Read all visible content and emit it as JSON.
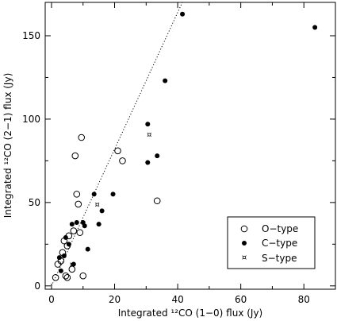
{
  "chart_data": {
    "type": "scatter",
    "xlabel": "Integrated ¹²CO (1−0) flux (Jy)",
    "ylabel": "Integrated ¹²CO (2−1) flux (Jy)",
    "xlim": [
      -2,
      90
    ],
    "ylim": [
      -2,
      170
    ],
    "x_ticks": [
      0,
      20,
      40,
      60,
      80
    ],
    "y_ticks": [
      0,
      50,
      100,
      150
    ],
    "grid": false,
    "legend_position": "bottom-right",
    "series": [
      {
        "name": "O−type",
        "marker": "open-circle",
        "points": [
          [
            1.3,
            5
          ],
          [
            2,
            13
          ],
          [
            3,
            15
          ],
          [
            3.5,
            20
          ],
          [
            4,
            27
          ],
          [
            4.5,
            6
          ],
          [
            5,
            5
          ],
          [
            5,
            24
          ],
          [
            5.5,
            30
          ],
          [
            6.5,
            10
          ],
          [
            7,
            33
          ],
          [
            7.5,
            78
          ],
          [
            8,
            55
          ],
          [
            8.5,
            49
          ],
          [
            9,
            32
          ],
          [
            9.5,
            89
          ],
          [
            10,
            6
          ],
          [
            21,
            81
          ],
          [
            22.5,
            75
          ],
          [
            33.5,
            51
          ]
        ]
      },
      {
        "name": "C−type",
        "marker": "filled-circle",
        "points": [
          [
            2.5,
            17
          ],
          [
            3,
            9
          ],
          [
            4,
            18
          ],
          [
            4.5,
            29
          ],
          [
            5.5,
            25
          ],
          [
            6.5,
            37
          ],
          [
            7,
            13
          ],
          [
            8,
            38
          ],
          [
            10,
            38
          ],
          [
            10.5,
            36
          ],
          [
            11.5,
            22
          ],
          [
            13.5,
            55
          ],
          [
            15,
            37
          ],
          [
            16,
            45
          ],
          [
            19.5,
            55
          ],
          [
            30.5,
            74
          ],
          [
            30.5,
            97
          ],
          [
            33.5,
            78
          ],
          [
            36,
            123
          ],
          [
            41.5,
            163
          ],
          [
            83.5,
            155
          ]
        ]
      },
      {
        "name": "S−type",
        "marker": "star",
        "points": [
          [
            6.5,
            13
          ],
          [
            14.5,
            49
          ],
          [
            31,
            91
          ]
        ]
      }
    ],
    "fit_line": {
      "style": "dotted",
      "slope": 4.1,
      "intercept": 0
    }
  }
}
